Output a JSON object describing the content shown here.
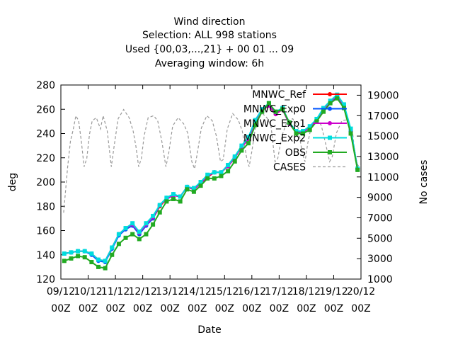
{
  "chart_data": {
    "type": "line",
    "title_lines": [
      "Wind direction",
      "Selection: ALL    998 stations",
      "Used {00,03,...,21} + 00 01 ... 09",
      "Averaging window:  6h"
    ],
    "xlabel": "Date",
    "ylabel": "deg",
    "y2label": "No cases",
    "ylim": [
      120,
      280
    ],
    "y2lim": [
      1000,
      20000
    ],
    "yticks": [
      120,
      140,
      160,
      180,
      200,
      220,
      240,
      260,
      280
    ],
    "y2ticks": [
      1000,
      3000,
      5000,
      7000,
      9000,
      11000,
      13000,
      15000,
      17000,
      19000
    ],
    "xlim": [
      0,
      11
    ],
    "xticks": [
      {
        "x": 0,
        "top": "09/12",
        "bottom": "00Z"
      },
      {
        "x": 1,
        "top": "10/12",
        "bottom": "00Z"
      },
      {
        "x": 2,
        "top": "11/12",
        "bottom": "00Z"
      },
      {
        "x": 3,
        "top": "12/12",
        "bottom": "00Z"
      },
      {
        "x": 4,
        "top": "13/12",
        "bottom": "00Z"
      },
      {
        "x": 5,
        "top": "14/12",
        "bottom": "00Z"
      },
      {
        "x": 6,
        "top": "15/12",
        "bottom": "00Z"
      },
      {
        "x": 7,
        "top": "16/12",
        "bottom": "00Z"
      },
      {
        "x": 8,
        "top": "17/12",
        "bottom": "00Z"
      },
      {
        "x": 9,
        "top": "18/12",
        "bottom": "00Z"
      },
      {
        "x": 10,
        "top": "19/12",
        "bottom": "00Z"
      },
      {
        "x": 11,
        "top": "20/12",
        "bottom": "00Z"
      }
    ],
    "x": [
      0.125,
      0.375,
      0.625,
      0.875,
      1.125,
      1.375,
      1.625,
      1.875,
      2.125,
      2.375,
      2.625,
      2.875,
      3.125,
      3.375,
      3.625,
      3.875,
      4.125,
      4.375,
      4.625,
      4.875,
      5.125,
      5.375,
      5.625,
      5.875,
      6.125,
      6.375,
      6.625,
      6.875,
      7.125,
      7.375,
      7.625,
      7.875,
      8.125,
      8.375,
      8.625,
      8.875,
      9.125,
      9.375,
      9.625,
      9.875,
      10.125,
      10.375,
      10.625,
      10.875
    ],
    "series": [
      {
        "name": "MNWC_Ref",
        "color": "#ff0000",
        "marker": "circle",
        "axis": "y1",
        "values": [
          141,
          142,
          143,
          143,
          141,
          136,
          135,
          146,
          157,
          161,
          165,
          158,
          165,
          170,
          180,
          186,
          189,
          188,
          196,
          194,
          199,
          204,
          208,
          208,
          213,
          220,
          229,
          235,
          250,
          259,
          263,
          256,
          260,
          248,
          241,
          241,
          245,
          251,
          259,
          266,
          271,
          263,
          243,
          211
        ]
      },
      {
        "name": "MNWC_Exp0",
        "color": "#0055ff",
        "marker": "circle",
        "axis": "y1",
        "values": [
          141,
          142,
          143,
          143,
          140,
          135,
          134,
          145,
          156,
          161,
          164,
          157,
          164,
          170,
          181,
          187,
          190,
          188,
          196,
          195,
          199,
          205,
          208,
          208,
          214,
          221,
          229,
          236,
          251,
          260,
          264,
          257,
          260,
          248,
          241,
          241,
          245,
          251,
          259,
          266,
          270,
          263,
          242,
          211
        ]
      },
      {
        "name": "MNWC_Exp1",
        "color": "#cc00cc",
        "marker": "circle",
        "axis": "y1",
        "values": [
          141,
          142,
          143,
          143,
          141,
          136,
          135,
          146,
          157,
          162,
          165,
          158,
          165,
          171,
          181,
          186,
          189,
          188,
          196,
          194,
          199,
          205,
          208,
          208,
          213,
          220,
          229,
          235,
          250,
          259,
          263,
          256,
          260,
          248,
          241,
          241,
          245,
          251,
          259,
          266,
          271,
          263,
          243,
          211
        ]
      },
      {
        "name": "MNWC_Exp2",
        "color": "#00dddd",
        "marker": "square",
        "axis": "y1",
        "values": [
          141,
          142,
          143,
          143,
          141,
          136,
          135,
          146,
          157,
          162,
          166,
          159,
          166,
          172,
          181,
          187,
          190,
          188,
          196,
          195,
          200,
          206,
          208,
          208,
          214,
          221,
          230,
          237,
          251,
          260,
          265,
          258,
          261,
          249,
          242,
          242,
          246,
          252,
          261,
          267,
          272,
          264,
          244,
          211
        ]
      },
      {
        "name": "OBS",
        "color": "#22aa22",
        "marker": "square",
        "axis": "y1",
        "values": [
          135,
          137,
          139,
          138,
          134,
          130,
          129,
          140,
          149,
          154,
          157,
          153,
          157,
          165,
          175,
          184,
          186,
          184,
          194,
          192,
          197,
          203,
          203,
          205,
          209,
          217,
          226,
          232,
          247,
          258,
          265,
          258,
          260,
          249,
          240,
          240,
          243,
          250,
          258,
          265,
          269,
          261,
          240,
          210
        ]
      },
      {
        "name": "CASES",
        "color": "#999999",
        "dash": true,
        "axis": "y2",
        "points": [
          [
            0.1,
            7500
          ],
          [
            0.25,
            12000
          ],
          [
            0.35,
            14500
          ],
          [
            0.45,
            15600
          ],
          [
            0.55,
            17000
          ],
          [
            0.65,
            16500
          ],
          [
            0.75,
            14500
          ],
          [
            0.85,
            12000
          ],
          [
            0.95,
            12800
          ],
          [
            1.05,
            15200
          ],
          [
            1.15,
            16500
          ],
          [
            1.3,
            16800
          ],
          [
            1.45,
            15700
          ],
          [
            1.55,
            17000
          ],
          [
            1.7,
            15500
          ],
          [
            1.85,
            12000
          ],
          [
            1.95,
            14000
          ],
          [
            2.1,
            16700
          ],
          [
            2.3,
            17600
          ],
          [
            2.5,
            16800
          ],
          [
            2.65,
            15500
          ],
          [
            2.75,
            14000
          ],
          [
            2.85,
            12000
          ],
          [
            2.95,
            12800
          ],
          [
            3.05,
            15000
          ],
          [
            3.2,
            16800
          ],
          [
            3.4,
            17000
          ],
          [
            3.55,
            16500
          ],
          [
            3.7,
            14500
          ],
          [
            3.85,
            12000
          ],
          [
            3.95,
            13300
          ],
          [
            4.1,
            16000
          ],
          [
            4.3,
            16800
          ],
          [
            4.5,
            16200
          ],
          [
            4.65,
            15300
          ],
          [
            4.8,
            12500
          ],
          [
            4.9,
            11800
          ],
          [
            5.0,
            13300
          ],
          [
            5.15,
            15800
          ],
          [
            5.35,
            17000
          ],
          [
            5.55,
            16500
          ],
          [
            5.7,
            15000
          ],
          [
            5.85,
            12500
          ],
          [
            5.95,
            12700
          ],
          [
            6.1,
            15700
          ],
          [
            6.3,
            17200
          ],
          [
            6.5,
            16600
          ],
          [
            6.65,
            15500
          ],
          [
            6.8,
            13000
          ],
          [
            6.9,
            12000
          ],
          [
            7.0,
            13500
          ],
          [
            7.15,
            16200
          ],
          [
            7.35,
            17300
          ],
          [
            7.55,
            16800
          ],
          [
            7.7,
            16000
          ],
          [
            7.85,
            12500
          ],
          [
            7.95,
            12800
          ],
          [
            8.1,
            15000
          ],
          [
            8.3,
            16500
          ],
          [
            8.5,
            16700
          ],
          [
            8.7,
            15800
          ],
          [
            8.85,
            13300
          ],
          [
            8.95,
            12500
          ],
          [
            9.05,
            14300
          ],
          [
            9.2,
            16200
          ],
          [
            9.4,
            16800
          ],
          [
            9.55,
            16000
          ],
          [
            9.7,
            14300
          ],
          [
            9.85,
            12500
          ],
          [
            9.95,
            13000
          ],
          [
            10.1,
            15300
          ],
          [
            10.3,
            16500
          ],
          [
            10.5,
            16600
          ],
          [
            10.7,
            15200
          ],
          [
            10.8,
            12600
          ],
          [
            10.9,
            12100
          ],
          [
            11.0,
            12100
          ]
        ]
      }
    ],
    "legend_position": "top-right"
  }
}
